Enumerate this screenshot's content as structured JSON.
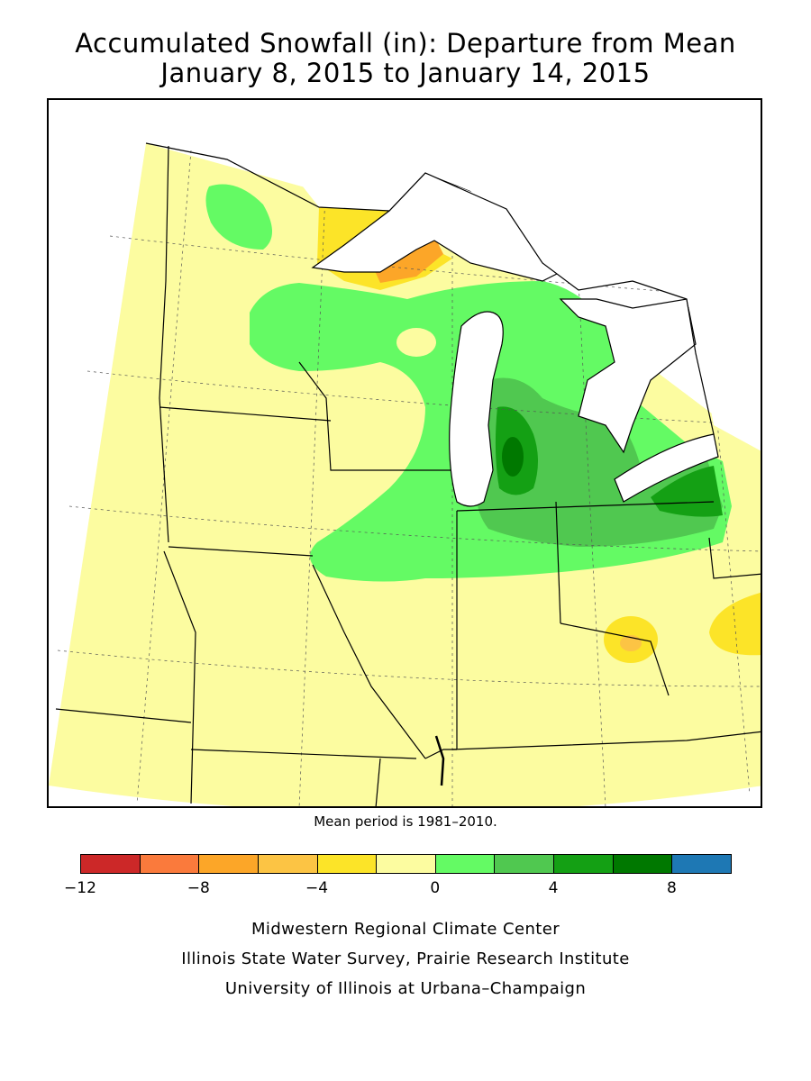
{
  "title": {
    "line1": "Accumulated Snowfall (in): Departure from Mean",
    "line2": "January 8, 2015 to January 14, 2015"
  },
  "mean_note": "Mean period is 1981–2010.",
  "legend": {
    "bins": [
      {
        "from": -12,
        "to": -10,
        "color": "#cc2828"
      },
      {
        "from": -10,
        "to": -8,
        "color": "#fa7a3c"
      },
      {
        "from": -8,
        "to": -6,
        "color": "#fca628"
      },
      {
        "from": -6,
        "to": -4,
        "color": "#fcc444"
      },
      {
        "from": -4,
        "to": -2,
        "color": "#fce428"
      },
      {
        "from": -2,
        "to": 0,
        "color": "#fcfca0"
      },
      {
        "from": 0,
        "to": 2,
        "color": "#64fa64"
      },
      {
        "from": 2,
        "to": 4,
        "color": "#50c850"
      },
      {
        "from": 4,
        "to": 6,
        "color": "#14a014"
      },
      {
        "from": 6,
        "to": 8,
        "color": "#007800"
      },
      {
        "from": 8,
        "to": 10,
        "color": "#1e78b4"
      }
    ],
    "tick_labels": [
      "−12",
      "−8",
      "−4",
      "0",
      "4",
      "8"
    ]
  },
  "credits": {
    "line1": "Midwestern Regional Climate Center",
    "line2": "Illinois State Water Survey, Prairie Research Institute",
    "line3": "University of Illinois at Urbana–Champaign"
  },
  "colors": {
    "lake": "#ffffff",
    "border": "#000000",
    "grid": "#555555"
  }
}
